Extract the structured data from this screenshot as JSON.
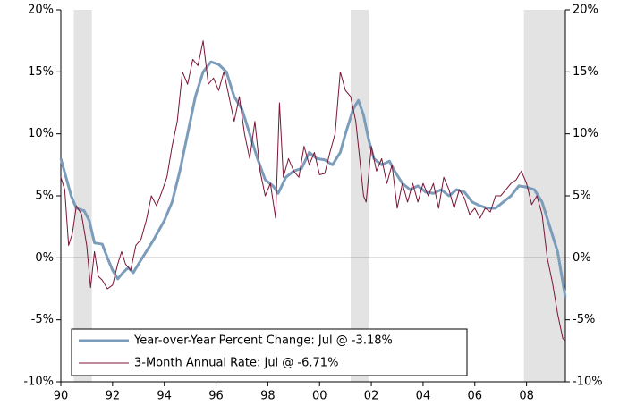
{
  "chart_data": {
    "type": "line",
    "xlim": [
      1990,
      2009.5
    ],
    "xticks": [
      {
        "value": 1990,
        "label": "90"
      },
      {
        "value": 1992,
        "label": "92"
      },
      {
        "value": 1994,
        "label": "94"
      },
      {
        "value": 1996,
        "label": "96"
      },
      {
        "value": 1998,
        "label": "98"
      },
      {
        "value": 2000,
        "label": "00"
      },
      {
        "value": 2002,
        "label": "02"
      },
      {
        "value": 2004,
        "label": "04"
      },
      {
        "value": 2006,
        "label": "06"
      },
      {
        "value": 2008,
        "label": "08"
      }
    ],
    "ylim": [
      -10,
      20
    ],
    "yticks": [
      {
        "value": -10,
        "label": "-10%"
      },
      {
        "value": -5,
        "label": "-5%"
      },
      {
        "value": 0,
        "label": "0%"
      },
      {
        "value": 5,
        "label": "5%"
      },
      {
        "value": 10,
        "label": "10%"
      },
      {
        "value": 15,
        "label": "15%"
      },
      {
        "value": 20,
        "label": "20%"
      }
    ],
    "y2lim": [
      -10,
      20
    ],
    "y2ticks": [
      {
        "value": -10,
        "label": "-10%"
      },
      {
        "value": -5,
        "label": "-5%"
      },
      {
        "value": 0,
        "label": "0%"
      },
      {
        "value": 5,
        "label": "5%"
      },
      {
        "value": 10,
        "label": "10%"
      },
      {
        "value": 15,
        "label": "15%"
      },
      {
        "value": 20,
        "label": "20%"
      }
    ],
    "shading": [
      [
        1990.5,
        1991.2
      ],
      [
        2001.2,
        2001.9
      ],
      [
        2007.9,
        2009.5
      ]
    ],
    "shading_color": "#e3e3e3",
    "legend": "lower left",
    "series": [
      {
        "name": "Year-over-Year Percent Change: Jul @ -3.18%",
        "color": "#7b9cba",
        "width": 3,
        "x": [
          1990.0,
          1990.2,
          1990.4,
          1990.6,
          1990.9,
          1991.1,
          1991.3,
          1991.6,
          1991.8,
          1992.0,
          1992.2,
          1992.4,
          1992.6,
          1992.8,
          1993.0,
          1993.3,
          1993.6,
          1994.0,
          1994.3,
          1994.6,
          1994.9,
          1995.2,
          1995.5,
          1995.8,
          1996.1,
          1996.4,
          1996.7,
          1997.0,
          1997.3,
          1997.6,
          1997.9,
          1998.2,
          1998.4,
          1998.7,
          1999.0,
          1999.3,
          1999.6,
          1999.9,
          2000.2,
          2000.5,
          2000.8,
          2001.0,
          2001.3,
          2001.5,
          2001.7,
          2001.9,
          2002.1,
          2002.4,
          2002.7,
          2002.9,
          2003.2,
          2003.5,
          2003.8,
          2004.1,
          2004.4,
          2004.7,
          2005.0,
          2005.3,
          2005.6,
          2005.9,
          2006.2,
          2006.5,
          2006.8,
          2007.1,
          2007.4,
          2007.7,
          2008.0,
          2008.3,
          2008.6,
          2008.9,
          2009.2,
          2009.5
        ],
        "values": [
          8,
          6.5,
          5,
          4,
          3.8,
          3,
          1.2,
          1.1,
          0,
          -1,
          -1.7,
          -1.2,
          -0.8,
          -1.2,
          -0.5,
          0.5,
          1.5,
          3,
          4.5,
          7,
          10,
          13,
          15,
          15.8,
          15.6,
          15,
          13,
          12,
          10,
          8,
          6.3,
          5.8,
          5.2,
          6.5,
          7,
          7.2,
          8.5,
          8,
          7.9,
          7.5,
          8.5,
          10,
          12,
          12.7,
          11.5,
          9.5,
          8,
          7.5,
          7.8,
          7,
          6,
          5.5,
          5.8,
          5.3,
          5.2,
          5.5,
          5,
          5.5,
          5.3,
          4.5,
          4.2,
          4,
          4,
          4.5,
          5,
          5.8,
          5.7,
          5.5,
          4.5,
          2.5,
          0.5,
          -3.18
        ]
      },
      {
        "name": "3-Month Annual Rate: Jul @ -6.71%",
        "color": "#7b1535",
        "width": 1,
        "x": [
          1990.0,
          1990.15,
          1990.3,
          1990.45,
          1990.6,
          1990.8,
          1991.0,
          1991.15,
          1991.3,
          1991.45,
          1991.6,
          1991.8,
          1992.0,
          1992.2,
          1992.35,
          1992.5,
          1992.7,
          1992.9,
          1993.1,
          1993.3,
          1993.5,
          1993.7,
          1993.9,
          1994.1,
          1994.3,
          1994.5,
          1994.7,
          1994.9,
          1995.1,
          1995.3,
          1995.5,
          1995.7,
          1995.9,
          1996.1,
          1996.3,
          1996.5,
          1996.7,
          1996.9,
          1997.1,
          1997.3,
          1997.5,
          1997.7,
          1997.9,
          1998.1,
          1998.3,
          1998.45,
          1998.6,
          1998.8,
          1999.0,
          1999.2,
          1999.4,
          1999.6,
          1999.8,
          2000.0,
          2000.2,
          2000.4,
          2000.6,
          2000.8,
          2001.0,
          2001.2,
          2001.4,
          2001.5,
          2001.7,
          2001.8,
          2002.0,
          2002.2,
          2002.4,
          2002.6,
          2002.8,
          2003.0,
          2003.2,
          2003.4,
          2003.6,
          2003.8,
          2004.0,
          2004.2,
          2004.4,
          2004.6,
          2004.8,
          2005.0,
          2005.2,
          2005.4,
          2005.6,
          2005.8,
          2006.0,
          2006.2,
          2006.4,
          2006.6,
          2006.8,
          2007.0,
          2007.2,
          2007.4,
          2007.6,
          2007.8,
          2008.0,
          2008.2,
          2008.4,
          2008.6,
          2008.8,
          2009.0,
          2009.2,
          2009.4,
          2009.5
        ],
        "values": [
          6.5,
          5.5,
          1,
          2,
          4.2,
          3.5,
          1,
          -2.4,
          0.5,
          -1.5,
          -1.8,
          -2.5,
          -2.2,
          -0.5,
          0.5,
          -0.5,
          -1,
          1,
          1.5,
          3,
          5,
          4.2,
          5.3,
          6.5,
          9,
          11,
          15,
          14,
          16,
          15.5,
          17.5,
          14,
          14.5,
          13.5,
          15,
          13,
          11,
          13,
          10,
          8,
          11,
          7,
          5,
          6,
          3.2,
          12.5,
          6.5,
          8,
          7,
          6.5,
          9,
          7.5,
          8.5,
          6.7,
          6.8,
          8.5,
          10,
          15,
          13.5,
          13,
          11,
          9,
          5,
          4.5,
          9,
          7,
          8,
          6,
          7.5,
          4,
          6,
          4.5,
          6,
          4.5,
          6,
          5,
          6,
          4,
          6.5,
          5.5,
          4,
          5.5,
          4.8,
          3.5,
          4,
          3.2,
          4,
          3.7,
          5,
          5,
          5.5,
          6,
          6.3,
          7,
          6,
          4.3,
          5,
          3.5,
          0,
          -2,
          -4.5,
          -6.5,
          -6.71
        ]
      }
    ]
  }
}
